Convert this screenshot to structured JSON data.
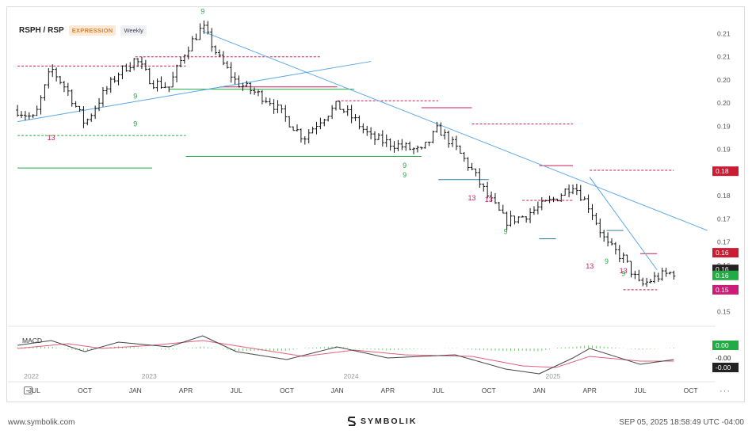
{
  "header": {
    "symbol": "RSPH / RSP",
    "mode": "EXPRESSION",
    "period": "Weekly"
  },
  "footer": {
    "site": "www.symbolik.com",
    "brand": "SYMBOLIK",
    "timestamp": "SEP 05, 2025 18:58:49 UTC -04:00",
    "more": "···"
  },
  "colors": {
    "up": "#22aa44",
    "down": "#cc1c55",
    "trend": "#5aa7e8",
    "macd": "#444444",
    "signal": "#e0607a",
    "hist": "#66cc66"
  },
  "chart_data": {
    "type": "ohlc",
    "title": "RSPH / RSP",
    "frequency": "Weekly",
    "x_axis": {
      "ticks": [
        "JUL",
        "OCT",
        "JAN",
        "APR",
        "JUL",
        "OCT",
        "JAN",
        "APR",
        "JUL",
        "OCT",
        "JAN",
        "APR",
        "JUL",
        "OCT"
      ],
      "year_labels": [
        "2022",
        "2023",
        "2024",
        "2025"
      ],
      "range": [
        "2022-06",
        "2025-11"
      ]
    },
    "y_axis": {
      "tick_labels": [
        "0.21",
        "0.21",
        "0.20",
        "0.20",
        "0.19",
        "0.19",
        "0.18",
        "0.18",
        "0.17",
        "0.17",
        "0.16",
        "0.16",
        "0.15"
      ],
      "range": [
        0.148,
        0.214
      ]
    },
    "series": {
      "name": "RSPH/RSP weekly close",
      "anchors": [
        [
          "2022-06",
          0.194
        ],
        [
          "2022-07",
          0.192
        ],
        [
          "2022-08",
          0.203
        ],
        [
          "2022-09",
          0.198
        ],
        [
          "2022-10",
          0.191
        ],
        [
          "2022-11",
          0.197
        ],
        [
          "2022-12",
          0.202
        ],
        [
          "2023-01",
          0.205
        ],
        [
          "2023-02",
          0.2
        ],
        [
          "2023-03",
          0.199
        ],
        [
          "2023-04",
          0.207
        ],
        [
          "2023-05",
          0.212
        ],
        [
          "2023-06",
          0.205
        ],
        [
          "2023-07",
          0.2
        ],
        [
          "2023-08",
          0.198
        ],
        [
          "2023-09",
          0.196
        ],
        [
          "2023-10",
          0.192
        ],
        [
          "2023-11",
          0.188
        ],
        [
          "2023-12",
          0.192
        ],
        [
          "2024-01",
          0.195
        ],
        [
          "2024-02",
          0.192
        ],
        [
          "2024-03",
          0.188
        ],
        [
          "2024-04",
          0.187
        ],
        [
          "2024-05",
          0.186
        ],
        [
          "2024-06",
          0.185
        ],
        [
          "2024-07",
          0.19
        ],
        [
          "2024-08",
          0.186
        ],
        [
          "2024-09",
          0.181
        ],
        [
          "2024-10",
          0.175
        ],
        [
          "2024-11",
          0.17
        ],
        [
          "2024-12",
          0.171
        ],
        [
          "2025-01",
          0.173
        ],
        [
          "2025-02",
          0.175
        ],
        [
          "2025-03",
          0.178
        ],
        [
          "2025-04",
          0.173
        ],
        [
          "2025-05",
          0.165
        ],
        [
          "2025-06",
          0.162
        ],
        [
          "2025-07",
          0.156
        ],
        [
          "2025-08",
          0.158
        ],
        [
          "2025-09",
          0.159
        ]
      ]
    },
    "price_labels": [
      {
        "text": "0.18",
        "value": 0.1808,
        "color": "#cc1c33"
      },
      {
        "text": "0.16",
        "value": 0.1632,
        "color": "#cc1c33"
      },
      {
        "text": "0.16",
        "value": 0.1596,
        "color": "#222222"
      },
      {
        "text": "0.16",
        "value": 0.1583,
        "color": "#22aa44"
      },
      {
        "text": "0.15",
        "value": 0.1552,
        "color": "#cc1c77"
      }
    ],
    "trendlines": [
      {
        "from": [
          "2022-06",
          0.1915
        ],
        "to": [
          "2024-03",
          0.2045
        ]
      },
      {
        "from": [
          "2023-05",
          0.211
        ],
        "to": [
          "2025-11",
          0.168
        ]
      },
      {
        "from": [
          "2025-04",
          0.1795
        ],
        "to": [
          "2025-08",
          0.1595
        ]
      }
    ],
    "levels": [
      {
        "value": 0.2035,
        "from": "2022-06",
        "to": "2023-04",
        "style": "dashed",
        "color": "#cc1c55"
      },
      {
        "value": 0.2055,
        "from": "2023-01",
        "to": "2023-12",
        "style": "dashed",
        "color": "#cc1c55"
      },
      {
        "value": 0.199,
        "from": "2023-06",
        "to": "2024-01",
        "style": "solid",
        "color": "#cc1c55"
      },
      {
        "value": 0.196,
        "from": "2024-01",
        "to": "2024-07",
        "style": "dashed",
        "color": "#cc1c55"
      },
      {
        "value": 0.1945,
        "from": "2024-06",
        "to": "2024-09",
        "style": "solid",
        "color": "#cc1c55"
      },
      {
        "value": 0.1985,
        "from": "2023-03",
        "to": "2024-02",
        "style": "solid",
        "color": "#22aa44"
      },
      {
        "value": 0.1885,
        "from": "2022-06",
        "to": "2023-04",
        "style": "dashed",
        "color": "#22aa44"
      },
      {
        "value": 0.1815,
        "from": "2022-06",
        "to": "2023-02",
        "style": "solid",
        "color": "#22aa44"
      },
      {
        "value": 0.184,
        "from": "2023-04",
        "to": "2024-06",
        "style": "solid",
        "color": "#22aa44"
      },
      {
        "value": 0.191,
        "from": "2024-09",
        "to": "2025-03",
        "style": "dashed",
        "color": "#cc1c55"
      },
      {
        "value": 0.181,
        "from": "2025-04",
        "to": "2025-09",
        "style": "dashed",
        "color": "#cc1c55"
      },
      {
        "value": 0.182,
        "from": "2025-01",
        "to": "2025-03",
        "style": "solid",
        "color": "#cc1c55"
      },
      {
        "value": 0.1745,
        "from": "2024-12",
        "to": "2025-03",
        "style": "dashed",
        "color": "#cc1c55"
      },
      {
        "value": 0.163,
        "from": "2025-07",
        "to": "2025-08",
        "style": "solid",
        "color": "#cc1c55"
      },
      {
        "value": 0.1552,
        "from": "2025-06",
        "to": "2025-08",
        "style": "dashed",
        "color": "#cc1c55"
      },
      {
        "value": 0.179,
        "from": "2024-07",
        "to": "2024-10",
        "style": "solid",
        "color": "#2c7a9a"
      },
      {
        "value": 0.1662,
        "from": "2025-01",
        "to": "2025-02",
        "style": "solid",
        "color": "#2c7a9a"
      },
      {
        "value": 0.168,
        "from": "2025-05",
        "to": "2025-06",
        "style": "solid",
        "color": "#2c7a9a"
      }
    ],
    "macd": {
      "label": "MACD",
      "value_labels": [
        {
          "text": "0.00",
          "color": "#22aa44"
        },
        {
          "text": "-0.00",
          "color": "#ffffff"
        },
        {
          "text": "-0.00",
          "color": "#222222"
        }
      ],
      "macd_anchors": [
        [
          "2022-06",
          0.3
        ],
        [
          "2022-08",
          0.6
        ],
        [
          "2022-10",
          -0.1
        ],
        [
          "2022-12",
          0.5
        ],
        [
          "2023-03",
          0.2
        ],
        [
          "2023-05",
          0.9
        ],
        [
          "2023-07",
          -0.1
        ],
        [
          "2023-10",
          -0.6
        ],
        [
          "2024-01",
          0.2
        ],
        [
          "2024-04",
          -0.5
        ],
        [
          "2024-08",
          -0.3
        ],
        [
          "2024-11",
          -1.2
        ],
        [
          "2025-01",
          -1.5
        ],
        [
          "2025-03",
          -0.5
        ],
        [
          "2025-04",
          0.1
        ],
        [
          "2025-07",
          -0.9
        ],
        [
          "2025-09",
          -0.6
        ]
      ],
      "signal_anchors": [
        [
          "2022-06",
          0.1
        ],
        [
          "2022-09",
          0.4
        ],
        [
          "2022-11",
          0.1
        ],
        [
          "2023-02",
          0.3
        ],
        [
          "2023-05",
          0.6
        ],
        [
          "2023-08",
          0.1
        ],
        [
          "2023-11",
          -0.4
        ],
        [
          "2024-02",
          0.0
        ],
        [
          "2024-05",
          -0.3
        ],
        [
          "2024-09",
          -0.4
        ],
        [
          "2024-12",
          -1.0
        ],
        [
          "2025-02",
          -1.1
        ],
        [
          "2025-04",
          -0.4
        ],
        [
          "2025-07",
          -0.7
        ],
        [
          "2025-09",
          -0.7
        ]
      ]
    },
    "annotations": [
      {
        "text": "9",
        "at": [
          "2023-05",
          0.2148
        ],
        "color": "#22aa44"
      },
      {
        "text": "9",
        "at": [
          "2023-01",
          0.1965
        ],
        "color": "#22aa44"
      },
      {
        "text": "9",
        "at": [
          "2023-01",
          0.1905
        ],
        "color": "#22aa44"
      },
      {
        "text": "13",
        "at": [
          "2022-08",
          0.1875
        ],
        "color": "#cc1c55"
      },
      {
        "text": "9",
        "at": [
          "2024-05",
          0.1815
        ],
        "color": "#22aa44"
      },
      {
        "text": "9",
        "at": [
          "2024-05",
          0.1795
        ],
        "color": "#22aa44"
      },
      {
        "text": "13",
        "at": [
          "2024-09",
          0.1745
        ],
        "color": "#cc1c55"
      },
      {
        "text": "13",
        "at": [
          "2024-10",
          0.1742
        ],
        "color": "#cc1c55"
      },
      {
        "text": "9",
        "at": [
          "2024-11",
          0.1672
        ],
        "color": "#22aa44"
      },
      {
        "text": "13",
        "at": [
          "2025-04",
          0.1598
        ],
        "color": "#cc1c55"
      },
      {
        "text": "9",
        "at": [
          "2025-05",
          0.1608
        ],
        "color": "#22aa44"
      },
      {
        "text": "13",
        "at": [
          "2025-06",
          0.1588
        ],
        "color": "#cc1c55"
      },
      {
        "text": "9",
        "at": [
          "2025-06",
          0.1582
        ],
        "color": "#22aa44"
      }
    ]
  }
}
